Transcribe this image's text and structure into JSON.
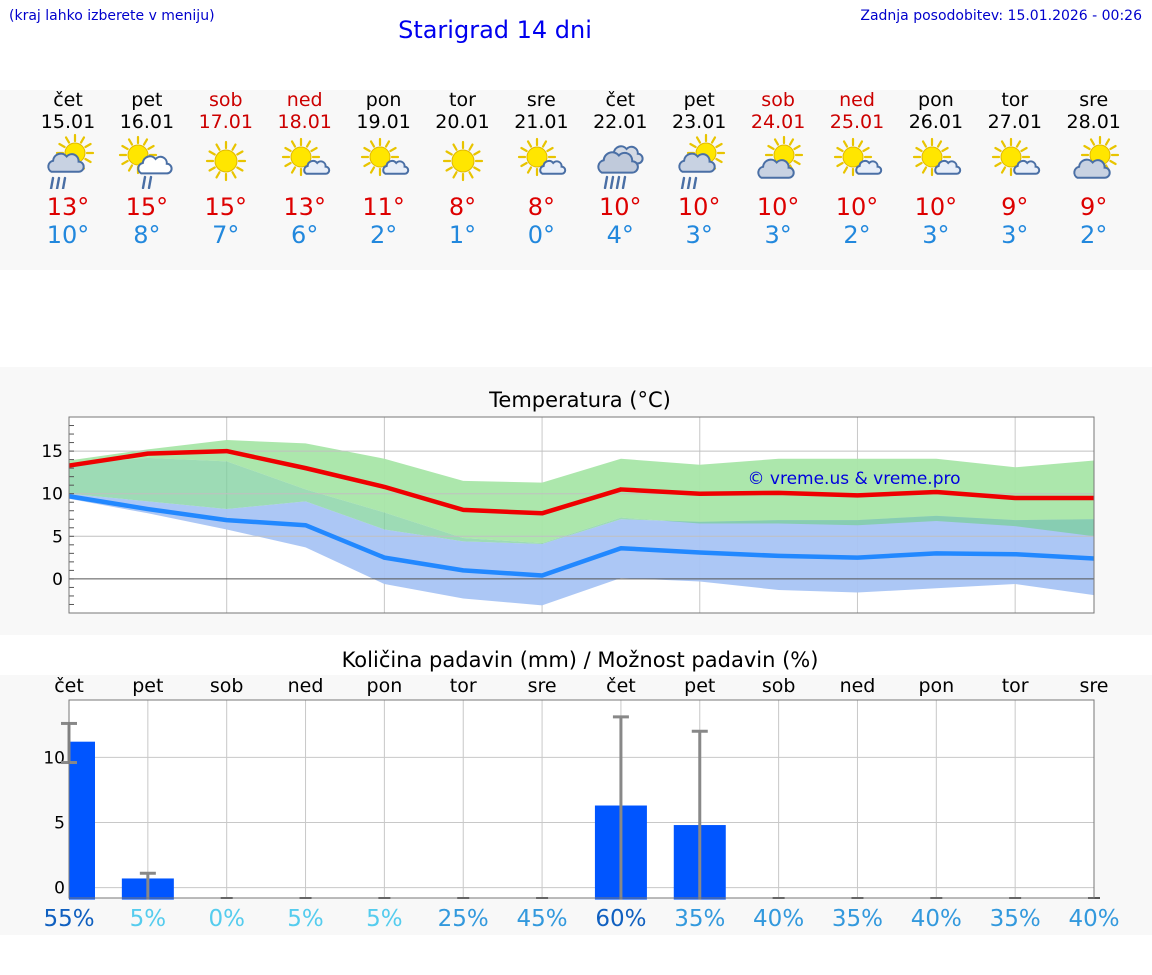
{
  "header": {
    "menu_note": "(kraj lahko izberete v meniju)",
    "title": "Starigrad 14 dni",
    "updated": "Zadnja posodobitev: 15.01.2026 - 00:26"
  },
  "days": [
    {
      "name": "čet",
      "date": "15.01",
      "weekend": false,
      "icon": "sun-cloud-rain-icon",
      "max": "13°",
      "min": "10°"
    },
    {
      "name": "pet",
      "date": "16.01",
      "weekend": false,
      "icon": "sun-cloud-light-rain-icon",
      "max": "15°",
      "min": "8°"
    },
    {
      "name": "sob",
      "date": "17.01",
      "weekend": true,
      "icon": "sun-icon",
      "max": "15°",
      "min": "7°"
    },
    {
      "name": "ned",
      "date": "18.01",
      "weekend": true,
      "icon": "sun-small-cloud-icon",
      "max": "13°",
      "min": "6°"
    },
    {
      "name": "pon",
      "date": "19.01",
      "weekend": false,
      "icon": "sun-small-cloud-icon",
      "max": "11°",
      "min": "2°"
    },
    {
      "name": "tor",
      "date": "20.01",
      "weekend": false,
      "icon": "sun-icon",
      "max": "8°",
      "min": "1°"
    },
    {
      "name": "sre",
      "date": "21.01",
      "weekend": false,
      "icon": "sun-small-cloud-icon",
      "max": "8°",
      "min": "0°"
    },
    {
      "name": "čet",
      "date": "22.01",
      "weekend": false,
      "icon": "cloud-rain-icon",
      "max": "10°",
      "min": "4°"
    },
    {
      "name": "pet",
      "date": "23.01",
      "weekend": false,
      "icon": "sun-cloud-rain-icon",
      "max": "10°",
      "min": "3°"
    },
    {
      "name": "sob",
      "date": "24.01",
      "weekend": true,
      "icon": "sun-cloud-icon",
      "max": "10°",
      "min": "3°"
    },
    {
      "name": "ned",
      "date": "25.01",
      "weekend": true,
      "icon": "sun-small-cloud-icon",
      "max": "10°",
      "min": "2°"
    },
    {
      "name": "pon",
      "date": "26.01",
      "weekend": false,
      "icon": "sun-small-cloud-icon",
      "max": "10°",
      "min": "3°"
    },
    {
      "name": "tor",
      "date": "27.01",
      "weekend": false,
      "icon": "sun-small-cloud-icon",
      "max": "9°",
      "min": "3°"
    },
    {
      "name": "sre",
      "date": "28.01",
      "weekend": false,
      "icon": "sun-cloud-icon",
      "max": "9°",
      "min": "2°"
    }
  ],
  "colors": {
    "max_line": "#ee0000",
    "min_line": "#2288ff",
    "max_band": "#a8e6a8",
    "min_band": "#a8c4f4",
    "overlap_band": "#7ccf9c",
    "bar": "#0055ff",
    "whisker": "#888888"
  },
  "chart_data": [
    {
      "type": "line",
      "title": "Temperatura (°C)",
      "watermark": "© vreme.us & vreme.pro",
      "y_ticks": [
        "0",
        "5",
        "10",
        "15"
      ],
      "ylim": [
        -4,
        19
      ],
      "x_days": 14,
      "series": [
        {
          "name": "max",
          "values": [
            13.3,
            14.7,
            15.0,
            13.0,
            10.8,
            8.1,
            7.7,
            10.5,
            10.0,
            10.1,
            9.8,
            10.2,
            9.5,
            9.5
          ],
          "band_low": [
            13.5,
            14.2,
            13.8,
            10.5,
            7.8,
            4.8,
            4.2,
            7.2,
            6.5,
            6.5,
            6.3,
            6.8,
            6.2,
            5.0
          ],
          "band_high": [
            13.9,
            15.2,
            16.3,
            15.9,
            14.1,
            11.5,
            11.3,
            14.1,
            13.4,
            14.1,
            14.1,
            14.1,
            13.1,
            13.9
          ]
        },
        {
          "name": "min",
          "values": [
            9.7,
            8.2,
            6.9,
            6.3,
            2.5,
            1.0,
            0.4,
            3.6,
            3.1,
            2.7,
            2.5,
            3.0,
            2.9,
            2.4
          ],
          "band_low": [
            9.4,
            7.7,
            5.8,
            3.7,
            -0.6,
            -2.3,
            -3.1,
            0.1,
            -0.3,
            -1.3,
            -1.6,
            -1.1,
            -0.6,
            -1.9
          ],
          "band_high": [
            10.0,
            9.1,
            8.2,
            9.1,
            5.8,
            4.4,
            4.1,
            7.0,
            6.7,
            6.9,
            6.9,
            7.4,
            6.9,
            7.0
          ]
        }
      ]
    },
    {
      "type": "bar",
      "title": "Količina padavin (mm) / Možnost padavin (%)",
      "categories": [
        "čet",
        "pet",
        "sob",
        "ned",
        "pon",
        "tor",
        "sre",
        "čet",
        "pet",
        "sob",
        "ned",
        "pon",
        "tor",
        "sre"
      ],
      "values": [
        11.2,
        0.7,
        0,
        0,
        0,
        0,
        0,
        6.3,
        4.8,
        0,
        0,
        0,
        0,
        0
      ],
      "err_low": [
        9.6,
        0,
        0,
        0,
        0,
        0,
        0,
        0,
        0,
        0,
        0,
        0,
        0,
        0
      ],
      "err_high": [
        12.6,
        1.1,
        0,
        0,
        0,
        0,
        0,
        13.1,
        12.0,
        0,
        0,
        0,
        0,
        0
      ],
      "y_ticks": [
        "0",
        "5",
        "10"
      ],
      "ylim": [
        -0.8,
        14.4
      ],
      "probability": [
        "55%",
        "5%",
        "0%",
        "5%",
        "5%",
        "25%",
        "45%",
        "60%",
        "35%",
        "40%",
        "35%",
        "40%",
        "35%",
        "40%"
      ]
    }
  ]
}
